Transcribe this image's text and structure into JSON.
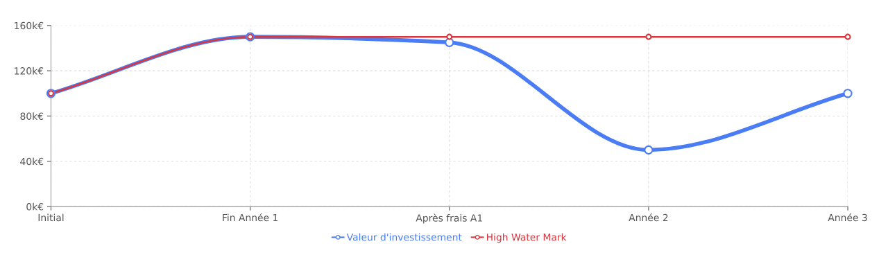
{
  "chart_data": {
    "type": "line",
    "categories": [
      "Initial",
      "Fin Année 1",
      "Après frais A1",
      "Année 2",
      "Année 3"
    ],
    "series": [
      {
        "name": "Valeur d'investissement",
        "color": "#4a7cf5",
        "values": [
          100,
          150,
          145,
          50,
          100
        ]
      },
      {
        "name": "High Water Mark",
        "color": "#d9363e",
        "values": [
          100,
          150,
          150,
          150,
          150
        ]
      }
    ],
    "ylim": [
      0,
      160
    ],
    "yticks": [
      {
        "value": 0,
        "label": "0k€"
      },
      {
        "value": 40,
        "label": "40k€"
      },
      {
        "value": 80,
        "label": "80k€"
      },
      {
        "value": 120,
        "label": "120k€"
      },
      {
        "value": 160,
        "label": "160k€"
      }
    ],
    "grid": true,
    "legend": "bottom",
    "marker": "circle",
    "line_style": "solid"
  }
}
